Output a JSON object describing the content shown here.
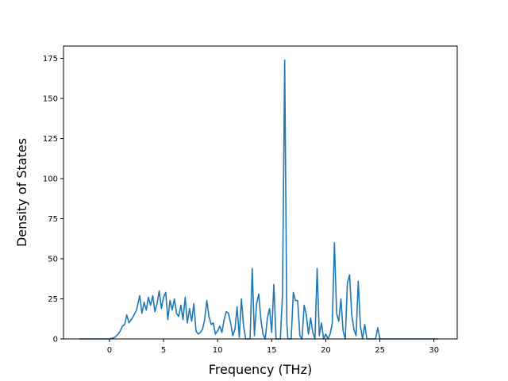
{
  "chart_data": {
    "type": "line",
    "title": "",
    "xlabel": "Frequency (THz)",
    "ylabel": "Density of States",
    "xlim": [
      -4.25,
      32.15
    ],
    "ylim": [
      0,
      182.7
    ],
    "xticks": [
      0,
      5,
      10,
      15,
      20,
      25,
      30
    ],
    "yticks": [
      0,
      25,
      50,
      75,
      100,
      125,
      150,
      175
    ],
    "grid": false,
    "line_color": "#1f77b4",
    "series": [
      {
        "x": [
          -2.8,
          -1.0,
          0.0,
          0.5,
          0.8,
          1.0,
          1.2,
          1.4,
          1.6,
          1.8,
          2.0,
          2.2,
          2.5,
          2.8,
          3.0,
          3.2,
          3.4,
          3.6,
          3.8,
          4.0,
          4.2,
          4.4,
          4.6,
          4.8,
          5.0,
          5.2,
          5.4,
          5.6,
          5.8,
          6.0,
          6.2,
          6.4,
          6.6,
          6.8,
          7.0,
          7.2,
          7.4,
          7.6,
          7.8,
          8.0,
          8.2,
          8.4,
          8.6,
          8.8,
          9.0,
          9.2,
          9.4,
          9.6,
          9.8,
          10.0,
          10.2,
          10.4,
          10.6,
          10.8,
          11.0,
          11.2,
          11.4,
          11.6,
          11.8,
          12.0,
          12.2,
          12.4,
          12.6,
          12.8,
          13.0,
          13.2,
          13.4,
          13.6,
          13.8,
          14.0,
          14.2,
          14.4,
          14.6,
          14.8,
          15.0,
          15.2,
          15.4,
          15.6,
          15.8,
          16.0,
          16.2,
          16.4,
          16.5,
          16.6,
          16.8,
          17.0,
          17.2,
          17.4,
          17.6,
          17.8,
          18.0,
          18.2,
          18.4,
          18.6,
          18.8,
          19.0,
          19.2,
          19.4,
          19.6,
          19.8,
          20.0,
          20.2,
          20.4,
          20.6,
          20.8,
          21.0,
          21.2,
          21.4,
          21.6,
          21.8,
          22.0,
          22.2,
          22.4,
          22.6,
          22.8,
          23.0,
          23.2,
          23.4,
          23.6,
          23.8,
          24.0,
          24.2,
          24.4,
          24.6,
          24.8,
          25.0,
          25.4,
          26.0,
          28.0,
          30.4
        ],
        "y": [
          0,
          0,
          0,
          1,
          3,
          5,
          8,
          9,
          15,
          10,
          12,
          14,
          18,
          27,
          16,
          23,
          18,
          26,
          21,
          27,
          17,
          22,
          30,
          19,
          26,
          29,
          12,
          24,
          18,
          25,
          16,
          14,
          21,
          12,
          26,
          10,
          19,
          11,
          22,
          5,
          3,
          4,
          6,
          12,
          24,
          14,
          9,
          10,
          3,
          5,
          8,
          4,
          12,
          17,
          16,
          10,
          2,
          6,
          20,
          1,
          25,
          8,
          0,
          0,
          0,
          44,
          2,
          22,
          28,
          12,
          3,
          0,
          13,
          19,
          4,
          34,
          0,
          0,
          0,
          28,
          174,
          10,
          0,
          0,
          0,
          29,
          24,
          24,
          2,
          0,
          21,
          15,
          3,
          13,
          4,
          0,
          44,
          2,
          10,
          0,
          3,
          0,
          3,
          10,
          60,
          16,
          11,
          25,
          5,
          0,
          35,
          40,
          15,
          6,
          2,
          36,
          8,
          0,
          9,
          0,
          0,
          0,
          0,
          0,
          7,
          0,
          0,
          0,
          0,
          0
        ]
      }
    ]
  }
}
